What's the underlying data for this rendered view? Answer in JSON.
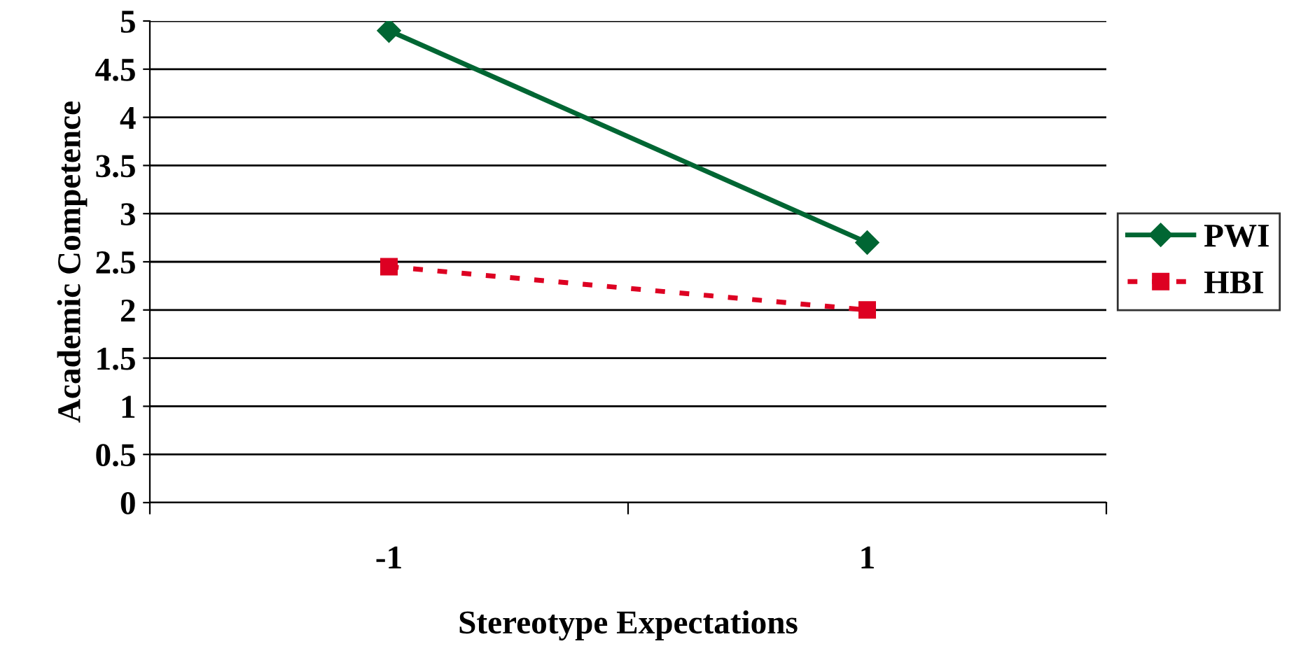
{
  "chart_data": {
    "type": "line",
    "xlabel": "Stereotype Expectations",
    "ylabel": "Academic Competence",
    "categories": [
      "-1",
      "1"
    ],
    "series": [
      {
        "name": "PWI",
        "color": "#006633",
        "values": [
          4.9,
          2.7
        ],
        "marker": "diamond",
        "line_style": "solid"
      },
      {
        "name": "HBI",
        "color": "#dd0022",
        "values": [
          2.45,
          2.0
        ],
        "marker": "square",
        "line_style": "dotted"
      }
    ],
    "ylim": [
      0,
      5
    ],
    "yticks": [
      0,
      0.5,
      1,
      1.5,
      2,
      2.5,
      3,
      3.5,
      4,
      4.5,
      5
    ],
    "grid": "y",
    "legend": "right"
  }
}
